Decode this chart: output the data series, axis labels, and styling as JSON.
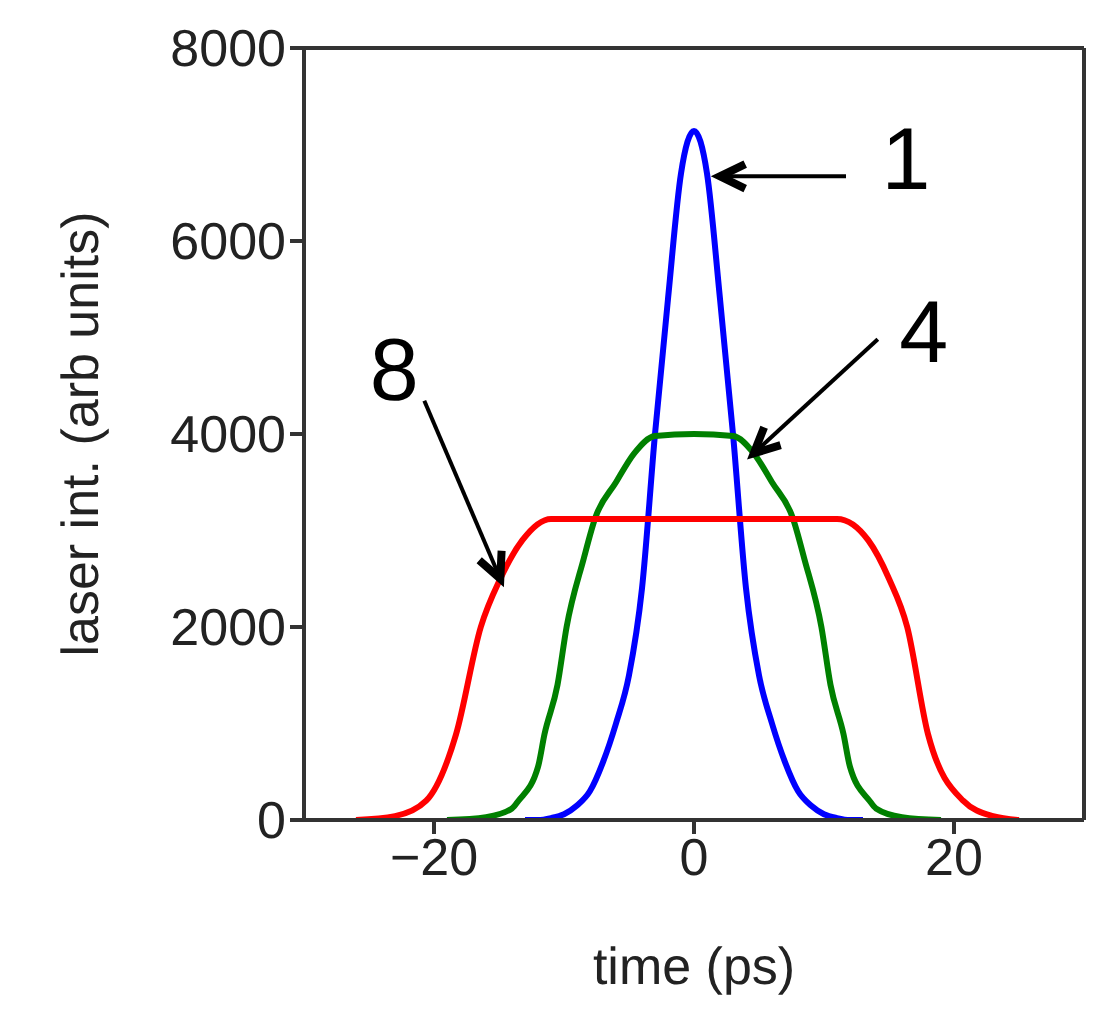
{
  "chart_data": {
    "type": "line",
    "xlabel": "time (ps)",
    "ylabel": "laser int. (arb units)",
    "xlim": [
      -30,
      30
    ],
    "xticks": [
      -20,
      0,
      20
    ],
    "ylim": [
      0,
      8000
    ],
    "yticks": [
      0,
      2000,
      4000,
      6000,
      8000
    ],
    "grid": false,
    "legend": false,
    "marker": "none",
    "line_style": "solid",
    "series": [
      {
        "color": "#0000ff",
        "x": [
          -13,
          -12,
          -11,
          -10,
          -9,
          -8,
          -7,
          -6,
          -5,
          -4,
          -3,
          -2,
          -1,
          0,
          1,
          2,
          3,
          4,
          5,
          6,
          7,
          8,
          9,
          10,
          11,
          12,
          13
        ],
        "values": [
          0,
          0,
          20,
          60,
          150,
          300,
          600,
          1000,
          1500,
          2400,
          4000,
          5400,
          6700,
          7140,
          6700,
          5400,
          4000,
          2400,
          1500,
          1000,
          600,
          300,
          150,
          60,
          20,
          0,
          0
        ]
      },
      {
        "color": "#008000",
        "x": [
          -19,
          -16,
          -14,
          -13.5,
          -12,
          -11.5,
          -10.5,
          -9.8,
          -8.5,
          -7.6,
          -6,
          -4.6,
          -3,
          0,
          3,
          4.6,
          6,
          7.6,
          8.5,
          9.8,
          10.5,
          11.5,
          12,
          13.5,
          14,
          16,
          19
        ],
        "values": [
          0,
          30,
          120,
          200,
          550,
          890,
          1400,
          2000,
          2700,
          3130,
          3500,
          3800,
          3980,
          4000,
          3980,
          3800,
          3500,
          3130,
          2700,
          2000,
          1400,
          890,
          550,
          200,
          120,
          30,
          0
        ]
      },
      {
        "color": "#ff0000",
        "x": [
          -26,
          -23,
          -20.6,
          -18.3,
          -16.4,
          -14.9,
          -13.2,
          -11,
          0,
          11,
          13.4,
          15,
          16.4,
          18,
          20.7,
          23,
          25
        ],
        "values": [
          0,
          40,
          200,
          890,
          2000,
          2500,
          2900,
          3120,
          3120,
          3120,
          2900,
          2500,
          2000,
          890,
          200,
          40,
          0
        ]
      }
    ],
    "annotations": [
      {
        "text": "1",
        "x": 2,
        "y": 6670
      },
      {
        "text": "4",
        "x": 4.6,
        "y": 3800
      },
      {
        "text": "8",
        "x": -14.9,
        "y": 2500
      }
    ]
  }
}
